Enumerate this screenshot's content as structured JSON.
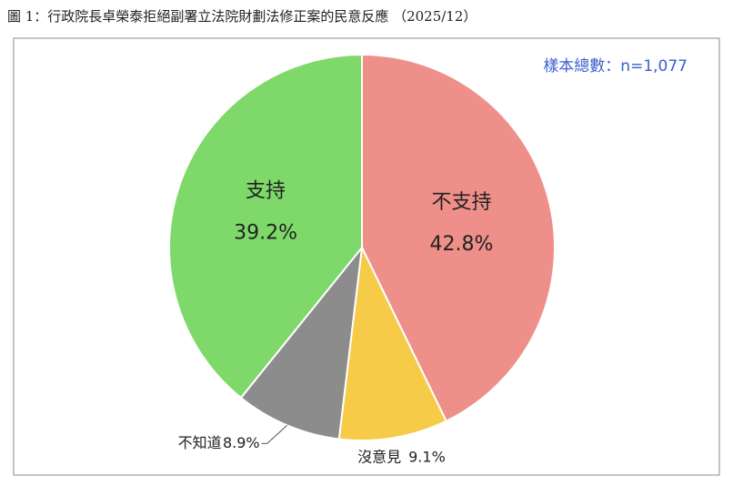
{
  "chart_data": {
    "type": "pie",
    "title": "圖 1：行政院長卓榮泰拒絕副署立法院財劃法修正案的民意反應 （2025/12）",
    "annotation": "樣本總數：n=1,077",
    "categories": [
      "不支持",
      "沒意見",
      "不知道",
      "支持"
    ],
    "values": [
      42.8,
      9.1,
      8.9,
      39.2
    ],
    "value_labels": [
      "42.8%",
      "9.1%",
      "8.9%",
      "39.2%"
    ],
    "colors": [
      "#ef8f8a",
      "#f5cb48",
      "#8c8c8c",
      "#7ed96a"
    ]
  }
}
